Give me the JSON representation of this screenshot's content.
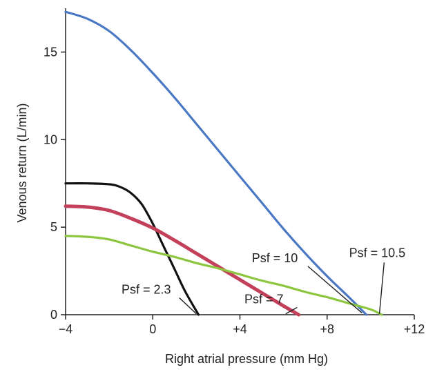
{
  "chart_data": {
    "type": "line",
    "xlabel": "Right atrial pressure (mm Hg)",
    "ylabel": "Venous return (L/min)",
    "xlim": [
      -4,
      12
    ],
    "ylim": [
      0,
      17.5
    ],
    "x_ticks": [
      {
        "value": -4,
        "label": "−4"
      },
      {
        "value": 0,
        "label": "0"
      },
      {
        "value": 4,
        "label": "+4"
      },
      {
        "value": 8,
        "label": "+8"
      },
      {
        "value": 12,
        "label": "+12"
      }
    ],
    "y_ticks": [
      {
        "value": 0,
        "label": "0"
      },
      {
        "value": 5,
        "label": "5"
      },
      {
        "value": 10,
        "label": "10"
      },
      {
        "value": 15,
        "label": "15"
      }
    ],
    "grid": false,
    "series": [
      {
        "color": "#4a78c4",
        "x": [
          -4,
          -3,
          -2,
          -1,
          0,
          1,
          2,
          3,
          4,
          5,
          6,
          7,
          8,
          9,
          9.8
        ],
        "y": [
          17.3,
          16.9,
          16.2,
          15.1,
          13.8,
          12.4,
          10.9,
          9.4,
          7.9,
          6.4,
          4.9,
          3.5,
          2.2,
          1.0,
          0
        ]
      },
      {
        "color": "#111111",
        "x": [
          -4,
          -3,
          -2,
          -1.5,
          -1,
          -0.5,
          0,
          0.5,
          1,
          1.5,
          2.1
        ],
        "y": [
          7.5,
          7.5,
          7.45,
          7.3,
          6.95,
          6.3,
          5.2,
          3.9,
          2.6,
          1.3,
          0
        ]
      },
      {
        "color": "#c2405a",
        "x": [
          -4,
          -3,
          -2,
          -1,
          0,
          1,
          2,
          3,
          4,
          5,
          6,
          6.7
        ],
        "y": [
          6.2,
          6.15,
          5.95,
          5.5,
          4.95,
          4.25,
          3.5,
          2.75,
          2.0,
          1.25,
          0.5,
          0
        ]
      },
      {
        "color": "#8cc63f",
        "x": [
          -4,
          -3,
          -2,
          -1,
          0,
          1,
          2,
          3,
          4,
          5,
          6,
          7,
          8,
          9,
          10,
          10.5
        ],
        "y": [
          4.5,
          4.45,
          4.3,
          3.95,
          3.6,
          3.3,
          2.95,
          2.65,
          2.3,
          1.95,
          1.65,
          1.3,
          1.0,
          0.65,
          0.3,
          0
        ]
      }
    ],
    "annotations": [
      {
        "text": "Psf = 2.3",
        "target_x": 2.0,
        "target_y": 0.05,
        "text_anchor": [
          -0.3,
          1.2
        ]
      },
      {
        "text": "Psf = 7",
        "target_x": 6.1,
        "target_y": 0.05,
        "text_anchor": [
          5.1,
          0.65
        ]
      },
      {
        "text": "Psf = 10",
        "target_x": 9.6,
        "target_y": 0.1,
        "text_anchor": [
          5.6,
          3.0
        ]
      },
      {
        "text": "Psf = 10.5",
        "target_x": 10.4,
        "target_y": 0.05,
        "text_anchor": [
          10.3,
          3.3
        ]
      }
    ]
  }
}
